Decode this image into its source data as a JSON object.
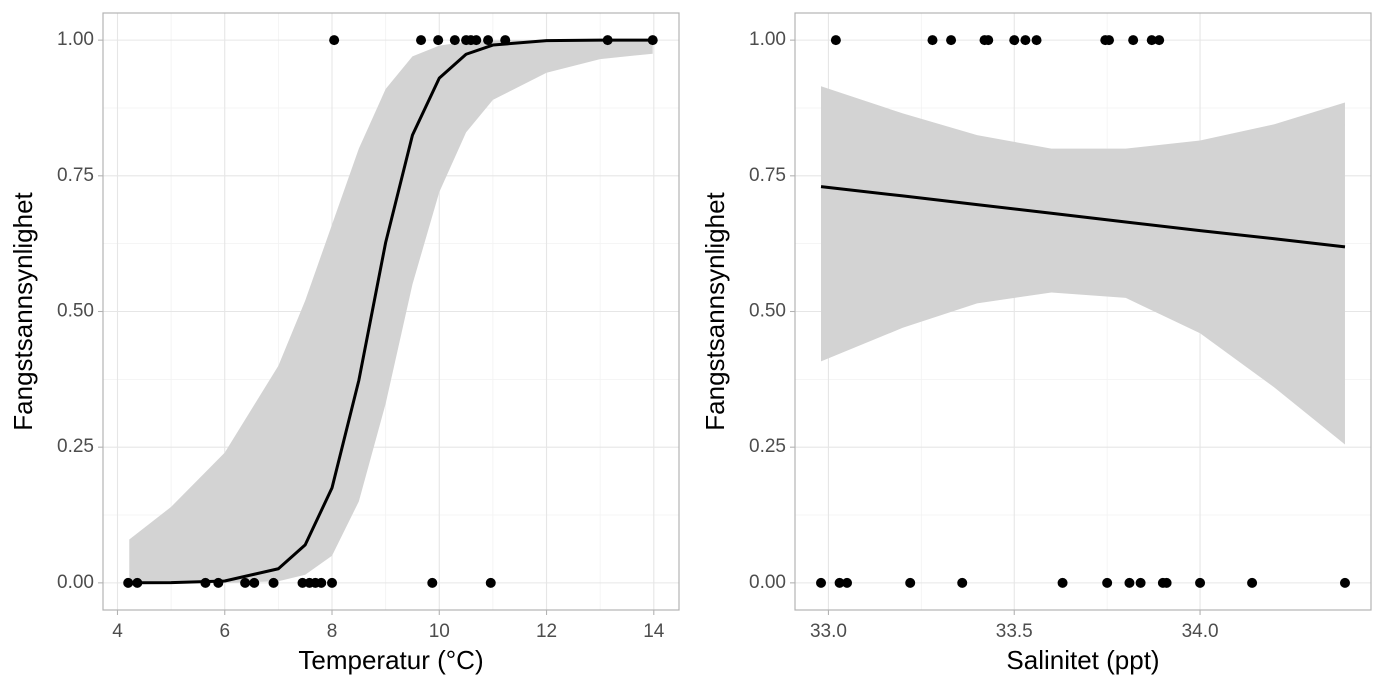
{
  "chart_data": [
    {
      "type": "scatter",
      "xlabel": "Temperatur (°C)",
      "ylabel": "Fangstsannsynlighet",
      "xlim": [
        3.73,
        14.47
      ],
      "ylim": [
        -0.05,
        1.05
      ],
      "xticks": [
        4,
        6,
        8,
        10,
        12,
        14
      ],
      "yticks": [
        {
          "value": 0,
          "label": "0.00"
        },
        {
          "value": 0.25,
          "label": "0.25"
        },
        {
          "value": 0.5,
          "label": "0.50"
        },
        {
          "value": 0.75,
          "label": "0.75"
        },
        {
          "value": 1,
          "label": "1.00"
        }
      ],
      "grid": true,
      "point_color": "#000000",
      "line_color": "#000000",
      "band_color": "#d3d3d3",
      "points": {
        "x": [
          4.2,
          4.37,
          5.64,
          5.88,
          6.38,
          6.55,
          6.91,
          7.45,
          7.58,
          7.69,
          7.8,
          8.0,
          9.87,
          10.96,
          8.04,
          9.66,
          9.98,
          10.29,
          10.5,
          10.59,
          10.69,
          10.91,
          11.23,
          13.14,
          13.98
        ],
        "y": [
          0,
          0,
          0,
          0,
          0,
          0,
          0,
          0,
          0,
          0,
          0,
          0,
          0,
          0,
          1,
          1,
          1,
          1,
          1,
          1,
          1,
          1,
          1,
          1,
          1
        ]
      },
      "fit": {
        "x": [
          4.22,
          5,
          6,
          7,
          7.5,
          8,
          8.5,
          9,
          9.5,
          10,
          10.5,
          11,
          12,
          13,
          13.98
        ],
        "y": [
          0.0001,
          0.0004,
          0.0034,
          0.026,
          0.07,
          0.175,
          0.373,
          0.627,
          0.825,
          0.93,
          0.974,
          0.991,
          0.999,
          1.0,
          1.0
        ],
        "lower": [
          0,
          0,
          0,
          0.003,
          0.015,
          0.05,
          0.15,
          0.33,
          0.55,
          0.72,
          0.83,
          0.89,
          0.94,
          0.965,
          0.975
        ],
        "upper": [
          0.08,
          0.14,
          0.24,
          0.4,
          0.52,
          0.66,
          0.8,
          0.91,
          0.97,
          0.99,
          0.997,
          0.999,
          1,
          1,
          1
        ]
      }
    },
    {
      "type": "scatter",
      "xlabel": "Salinitet (ppt)",
      "ylabel": "Fangstsannsynlighet",
      "xlim": [
        32.91,
        34.46
      ],
      "ylim": [
        -0.05,
        1.05
      ],
      "xticks": [
        {
          "value": 33,
          "label": "33.0"
        },
        33.5,
        {
          "value": 34,
          "label": "34.0"
        }
      ],
      "yticks": [
        {
          "value": 0,
          "label": "0.00"
        },
        {
          "value": 0.25,
          "label": "0.25"
        },
        {
          "value": 0.5,
          "label": "0.50"
        },
        {
          "value": 0.75,
          "label": "0.75"
        },
        {
          "value": 1,
          "label": "1.00"
        }
      ],
      "grid": true,
      "point_color": "#000000",
      "line_color": "#000000",
      "band_color": "#d3d3d3",
      "points": {
        "x": [
          32.98,
          33.03,
          33.05,
          33.22,
          33.36,
          33.63,
          33.75,
          33.81,
          33.84,
          33.9,
          33.91,
          34.0,
          34.14,
          34.39,
          33.02,
          33.28,
          33.33,
          33.42,
          33.43,
          33.5,
          33.53,
          33.56,
          33.745,
          33.755,
          33.82,
          33.87,
          33.89
        ],
        "y": [
          0,
          0,
          0,
          0,
          0,
          0,
          0,
          0,
          0,
          0,
          0,
          0,
          0,
          0,
          1,
          1,
          1,
          1,
          1,
          1,
          1,
          1,
          1,
          1,
          1,
          1,
          1
        ]
      },
      "fit": {
        "x": [
          32.98,
          33.2,
          33.4,
          33.6,
          33.8,
          34.0,
          34.2,
          34.39
        ],
        "y": [
          0.73,
          0.713,
          0.697,
          0.681,
          0.665,
          0.649,
          0.634,
          0.619
        ],
        "lower": [
          0.408,
          0.47,
          0.515,
          0.535,
          0.525,
          0.46,
          0.36,
          0.255
        ],
        "upper": [
          0.915,
          0.865,
          0.825,
          0.8,
          0.8,
          0.815,
          0.845,
          0.885
        ]
      }
    }
  ]
}
